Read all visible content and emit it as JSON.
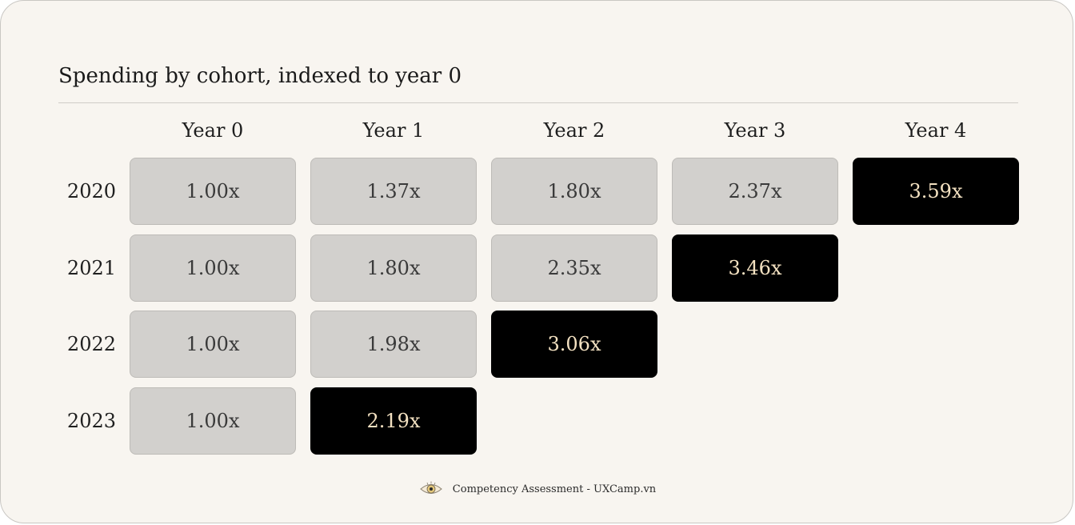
{
  "chart_data": {
    "type": "heatmap",
    "title": "Spending by cohort, indexed to year 0",
    "columns": [
      "Year 0",
      "Year 1",
      "Year 2",
      "Year 3",
      "Year 4"
    ],
    "rows": [
      {
        "label": "2020",
        "values": [
          "1.00x",
          "1.37x",
          "1.80x",
          "2.37x",
          "3.59x"
        ],
        "highlight_index": 4
      },
      {
        "label": "2021",
        "values": [
          "1.00x",
          "1.80x",
          "2.35x",
          "3.46x"
        ],
        "highlight_index": 3
      },
      {
        "label": "2022",
        "values": [
          "1.00x",
          "1.98x",
          "3.06x"
        ],
        "highlight_index": 2
      },
      {
        "label": "2023",
        "values": [
          "1.00x",
          "2.19x"
        ],
        "highlight_index": 1
      }
    ],
    "colors": {
      "cell": "#d2d0cd",
      "highlight_cell": "#000000",
      "highlight_text": "#f3e1c1",
      "background": "#f8f5f0"
    }
  },
  "footer": {
    "icon": "eye-icon",
    "text": "Competency Assessment - UXCamp.vn"
  }
}
